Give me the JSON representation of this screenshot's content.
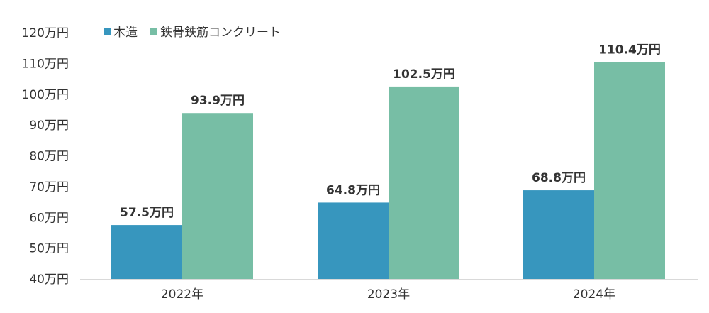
{
  "chart_data": {
    "type": "bar",
    "categories": [
      "2022年",
      "2023年",
      "2024年"
    ],
    "series": [
      {
        "name": "木造",
        "values": [
          57.5,
          64.8,
          68.8
        ],
        "color": "#3796be"
      },
      {
        "name": "鉄骨鉄筋コンクリート",
        "values": [
          93.9,
          102.5,
          110.4
        ],
        "color": "#77bea5"
      }
    ],
    "data_labels": [
      [
        "57.5万円",
        "64.8万円",
        "68.8万円"
      ],
      [
        "93.9万円",
        "102.5万円",
        "110.4万円"
      ]
    ],
    "y_ticks": [
      {
        "value": 40,
        "label": "40万円"
      },
      {
        "value": 50,
        "label": "50万円"
      },
      {
        "value": 60,
        "label": "60万円"
      },
      {
        "value": 70,
        "label": "70万円"
      },
      {
        "value": 80,
        "label": "80万円"
      },
      {
        "value": 90,
        "label": "90万円"
      },
      {
        "value": 100,
        "label": "100万円"
      },
      {
        "value": 110,
        "label": "110万円"
      },
      {
        "value": 120,
        "label": "120万円"
      }
    ],
    "ylim": [
      40,
      120
    ],
    "grid": false,
    "legend_position": "top-left",
    "axis_color": "#d9d9d9",
    "text_color": "#333333"
  }
}
